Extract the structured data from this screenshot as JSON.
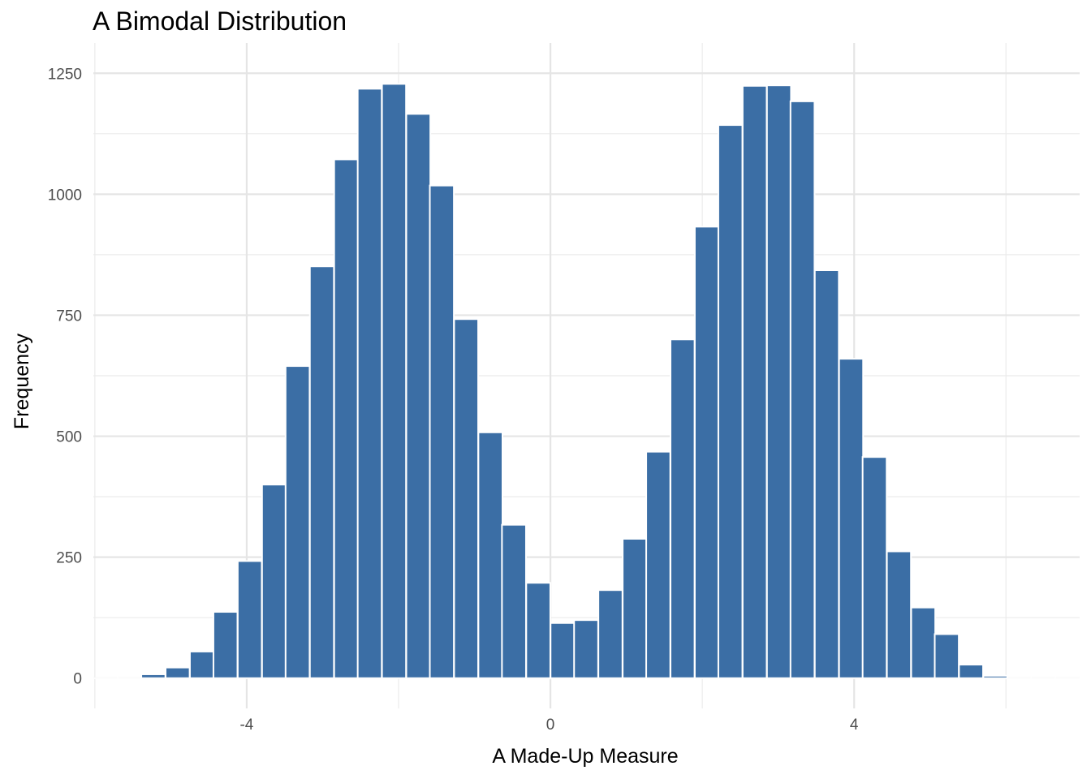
{
  "chart_data": {
    "type": "bar",
    "title": "A Bimodal Distribution",
    "xlabel": "A Made-Up Measure",
    "ylabel": "Frequency",
    "bin_width": 0.3167,
    "bin_centers": [
      -5.86,
      -5.54,
      -5.23,
      -4.91,
      -4.59,
      -4.28,
      -3.96,
      -3.64,
      -3.33,
      -3.01,
      -2.69,
      -2.38,
      -2.06,
      -1.74,
      -1.43,
      -1.11,
      -0.79,
      -0.48,
      -0.16,
      0.16,
      0.47,
      0.79,
      1.11,
      1.42,
      1.74,
      2.06,
      2.37,
      2.69,
      3.01,
      3.32,
      3.64,
      3.96,
      4.27,
      4.59,
      4.91,
      5.22,
      5.54,
      5.86,
      6.17,
      6.49,
      6.81
    ],
    "values": [
      0,
      0,
      8,
      22,
      55,
      137,
      242,
      400,
      645,
      851,
      1072,
      1218,
      1228,
      1166,
      1018,
      742,
      508,
      317,
      197,
      114,
      120,
      182,
      288,
      468,
      700,
      933,
      1143,
      1224,
      1225,
      1192,
      843,
      660,
      457,
      262,
      146,
      91,
      28,
      5,
      0,
      0,
      0
    ],
    "xlim": [
      -6.02,
      6.97
    ],
    "ylim": [
      -62.5,
      1312.5
    ],
    "x_ticks": [
      -4,
      0,
      4
    ],
    "x_tick_labels": [
      "-4",
      "0",
      "4"
    ],
    "x_minor_ticks": [
      -6,
      -2,
      2,
      6
    ],
    "y_ticks": [
      0,
      250,
      500,
      750,
      1000,
      1250
    ],
    "y_tick_labels": [
      "0",
      "250",
      "500",
      "750",
      "1000",
      "1250"
    ],
    "bar_color": "#3b6ea5",
    "grid": true,
    "legend": "none"
  }
}
